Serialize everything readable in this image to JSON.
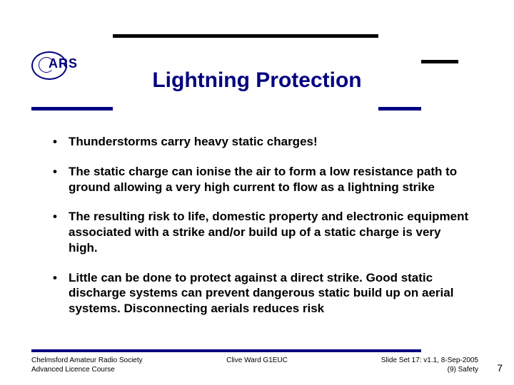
{
  "logo": {
    "text": "ARS"
  },
  "title": "Lightning Protection",
  "bullets": [
    "Thunderstorms carry heavy static charges!",
    "The static charge can ionise the air to form a low resistance path to ground allowing a very high current to flow as a lightning strike",
    "The resulting risk to life, domestic property and electronic equipment associated with a strike and/or build up of a static charge is very high.",
    "Little can be done to protect against a direct strike.  Good static discharge systems can prevent dangerous static build up on aerial systems. Disconnecting aerials reduces risk"
  ],
  "footer": {
    "left_line1": "Chelmsford Amateur Radio Society",
    "left_line2": "Advanced Licence Course",
    "center": "Clive Ward G1EUC",
    "right_line1": "Slide Set 17:  v1.1,  8-Sep-2005",
    "right_line2": "(9) Safety",
    "page": "7"
  },
  "colors": {
    "navy": "#000080",
    "black": "#000000",
    "bg": "#ffffff"
  }
}
